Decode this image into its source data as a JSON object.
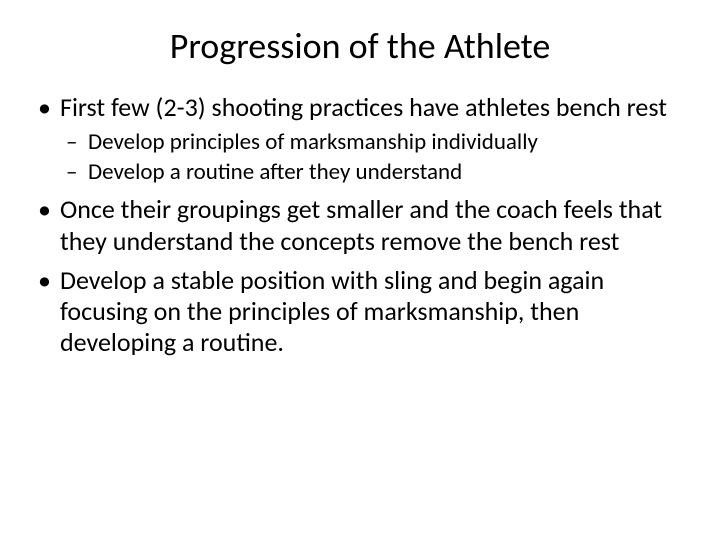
{
  "slide": {
    "title": "Progression of the Athlete",
    "bullets": [
      {
        "text": "First few (2-3) shooting practices have athletes bench rest",
        "sub": [
          "Develop principles of marksmanship individually",
          "Develop a routine after they understand"
        ]
      },
      {
        "text": "Once their groupings get smaller and the coach feels that they understand the concepts remove the bench rest",
        "sub": []
      },
      {
        "text": "Develop a stable position with sling and begin again focusing on the principles of marksmanship, then developing a routine.",
        "sub": []
      }
    ]
  },
  "style": {
    "background_color": "#ffffff",
    "text_color": "#000000",
    "title_fontsize": 36,
    "body_fontsize": 26,
    "sub_fontsize": 23,
    "font_family": "Calibri"
  }
}
